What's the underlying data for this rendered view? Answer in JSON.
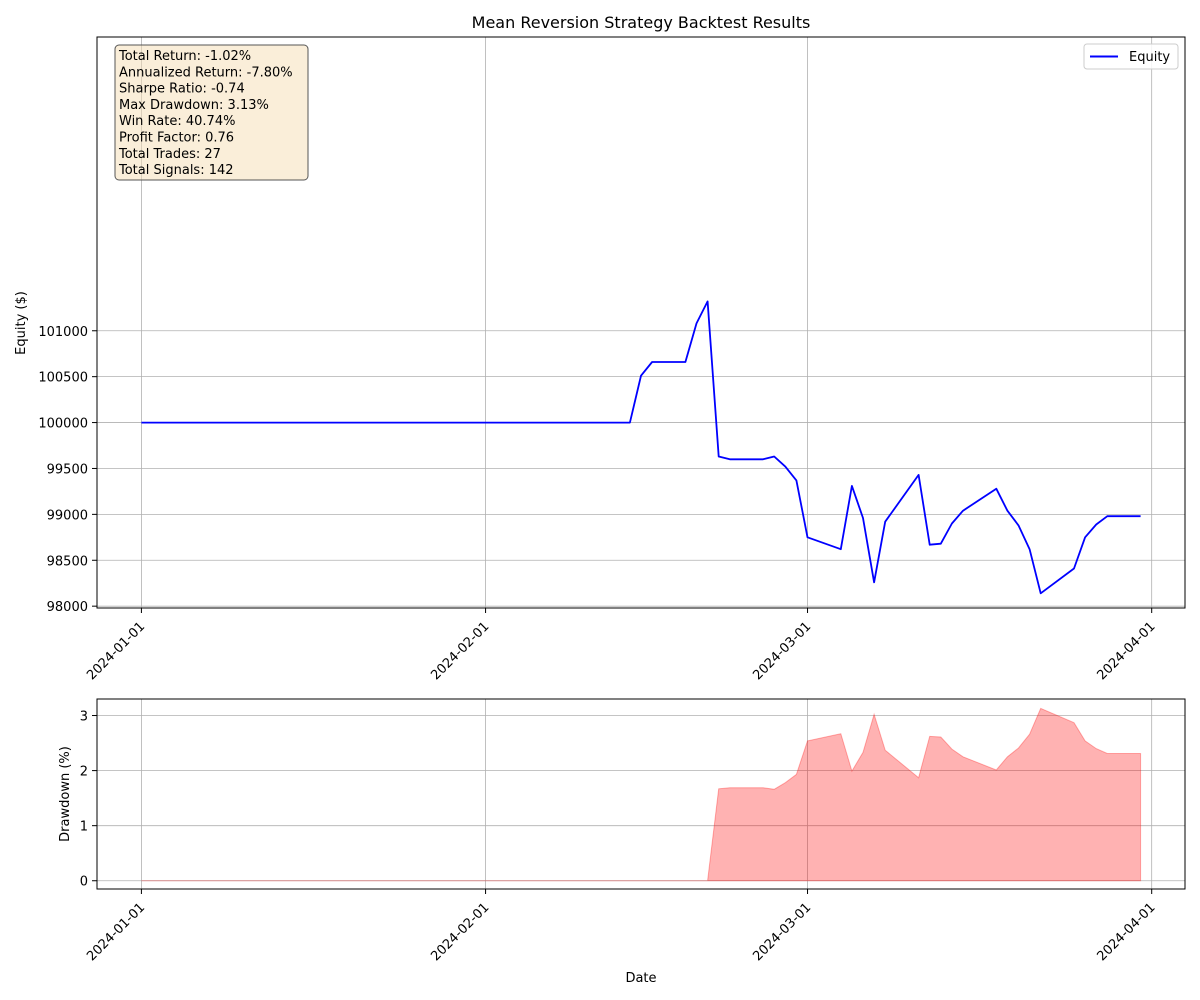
{
  "chart_data": [
    {
      "type": "line",
      "title": "Mean Reversion Strategy Backtest Results",
      "xlabel": "",
      "ylabel": "Equity ($)",
      "x_ticks": [
        "2024-01-01",
        "2024-02-01",
        "2024-03-01",
        "2024-04-01"
      ],
      "y_ticks": [
        98000,
        98500,
        99000,
        99500,
        100000,
        100500,
        101000
      ],
      "xlim": [
        "2023-12-28",
        "2024-04-04"
      ],
      "ylim": [
        97980,
        104200
      ],
      "grid": true,
      "legend": {
        "position": "top-right",
        "entries": [
          "Equity"
        ]
      },
      "annotation": [
        "Total Return: -1.02%",
        "Annualized Return: -7.80%",
        "Sharpe Ratio: -0.74",
        "Max Drawdown: 3.13%",
        "Win Rate: 40.74%",
        "Profit Factor: 0.76",
        "Total Trades: 27",
        "Total Signals: 142"
      ],
      "series": [
        {
          "name": "Equity",
          "color": "#0000ff",
          "points": [
            [
              "2024-01-01",
              100000
            ],
            [
              "2024-02-14",
              100000
            ],
            [
              "2024-02-15",
              100510
            ],
            [
              "2024-02-16",
              100660
            ],
            [
              "2024-02-19",
              100660
            ],
            [
              "2024-02-20",
              101080
            ],
            [
              "2024-02-21",
              101320
            ],
            [
              "2024-02-22",
              99630
            ],
            [
              "2024-02-23",
              99600
            ],
            [
              "2024-02-26",
              99600
            ],
            [
              "2024-02-27",
              99630
            ],
            [
              "2024-02-28",
              99520
            ],
            [
              "2024-02-29",
              99370
            ],
            [
              "2024-03-01",
              98750
            ],
            [
              "2024-03-04",
              98620
            ],
            [
              "2024-03-05",
              99310
            ],
            [
              "2024-03-06",
              98960
            ],
            [
              "2024-03-07",
              98260
            ],
            [
              "2024-03-08",
              98920
            ],
            [
              "2024-03-11",
              99430
            ],
            [
              "2024-03-12",
              98670
            ],
            [
              "2024-03-13",
              98680
            ],
            [
              "2024-03-14",
              98900
            ],
            [
              "2024-03-15",
              99040
            ],
            [
              "2024-03-18",
              99280
            ],
            [
              "2024-03-19",
              99040
            ],
            [
              "2024-03-20",
              98880
            ],
            [
              "2024-03-21",
              98620
            ],
            [
              "2024-03-22",
              98140
            ],
            [
              "2024-03-25",
              98410
            ],
            [
              "2024-03-26",
              98750
            ],
            [
              "2024-03-27",
              98890
            ],
            [
              "2024-03-28",
              98980
            ],
            [
              "2024-03-31",
              98980
            ]
          ]
        }
      ]
    },
    {
      "type": "area",
      "title": "",
      "xlabel": "Date",
      "ylabel": "Drawdown (%)",
      "x_ticks": [
        "2024-01-01",
        "2024-02-01",
        "2024-03-01",
        "2024-04-01"
      ],
      "y_ticks": [
        0,
        1,
        2,
        3
      ],
      "xlim": [
        "2023-12-28",
        "2024-04-04"
      ],
      "ylim": [
        -0.15,
        3.3
      ],
      "grid": true,
      "series": [
        {
          "name": "Drawdown",
          "color": "#ff0000",
          "opacity": 0.3,
          "points": [
            [
              "2024-01-01",
              0
            ],
            [
              "2024-02-21",
              0
            ],
            [
              "2024-02-22",
              1.67
            ],
            [
              "2024-02-23",
              1.69
            ],
            [
              "2024-02-26",
              1.69
            ],
            [
              "2024-02-27",
              1.66
            ],
            [
              "2024-02-28",
              1.78
            ],
            [
              "2024-02-29",
              1.93
            ],
            [
              "2024-03-01",
              2.54
            ],
            [
              "2024-03-04",
              2.67
            ],
            [
              "2024-03-05",
              1.99
            ],
            [
              "2024-03-06",
              2.33
            ],
            [
              "2024-03-07",
              3.02
            ],
            [
              "2024-03-08",
              2.37
            ],
            [
              "2024-03-11",
              1.87
            ],
            [
              "2024-03-12",
              2.62
            ],
            [
              "2024-03-13",
              2.61
            ],
            [
              "2024-03-14",
              2.39
            ],
            [
              "2024-03-15",
              2.25
            ],
            [
              "2024-03-18",
              2.01
            ],
            [
              "2024-03-19",
              2.25
            ],
            [
              "2024-03-20",
              2.41
            ],
            [
              "2024-03-21",
              2.66
            ],
            [
              "2024-03-22",
              3.13
            ],
            [
              "2024-03-25",
              2.87
            ],
            [
              "2024-03-26",
              2.54
            ],
            [
              "2024-03-27",
              2.4
            ],
            [
              "2024-03-28",
              2.31
            ],
            [
              "2024-03-31",
              2.31
            ]
          ]
        }
      ]
    }
  ]
}
